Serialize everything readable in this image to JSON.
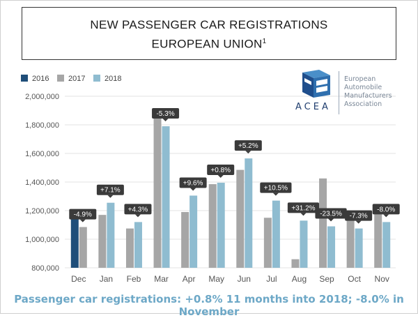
{
  "title": {
    "line1": "NEW PASSENGER CAR REGISTRATIONS",
    "line2": "EUROPEAN UNION",
    "line2_sup": "1"
  },
  "logo": {
    "acronym": "ACEA",
    "name": "European Automobile Manufacturers Association"
  },
  "colors": {
    "2016": "#1f4e79",
    "2017": "#a6a6a6",
    "2018": "#8fbcd0",
    "label_bg": "#3a3a3a",
    "footer": "#6da8c7"
  },
  "footer": "Passenger car registrations: +0.8% 11 months into 2018; -8.0% in November",
  "chart_data": {
    "type": "bar",
    "categories": [
      "Dec",
      "Jan",
      "Feb",
      "Mar",
      "Apr",
      "May",
      "Jun",
      "Jul",
      "Aug",
      "Sep",
      "Oct",
      "Nov"
    ],
    "series": [
      {
        "name": "2016",
        "values": [
          1140000,
          null,
          null,
          null,
          null,
          null,
          null,
          null,
          null,
          null,
          null,
          null
        ]
      },
      {
        "name": "2017",
        "values": [
          1085000,
          1170000,
          1075000,
          1885000,
          1190000,
          1385000,
          1485000,
          1150000,
          860000,
          1425000,
          1155000,
          1215000
        ]
      },
      {
        "name": "2018",
        "values": [
          null,
          1255000,
          1120000,
          1790000,
          1305000,
          1395000,
          1565000,
          1270000,
          1130000,
          1090000,
          1075000,
          1120000
        ]
      }
    ],
    "change_labels": [
      "-4.9%",
      "+7.1%",
      "+4.3%",
      "-5.3%",
      "+9.6%",
      "+0.8%",
      "+5.2%",
      "+10.5%",
      "+31.2%",
      "-23.5%",
      "-7.3%",
      "-8.0%"
    ],
    "y_ticks": [
      "800,000",
      "1,000,000",
      "1,200,000",
      "1,400,000",
      "1,600,000",
      "1,800,000",
      "2,000,000"
    ],
    "y_tick_values": [
      800000,
      1000000,
      1200000,
      1400000,
      1600000,
      1800000,
      2000000
    ],
    "ylim": [
      800000,
      2000000
    ],
    "legend": [
      "2016",
      "2017",
      "2018"
    ],
    "legend_position": "top-left",
    "grid": true,
    "title": "New passenger car registrations European Union",
    "xlabel": "",
    "ylabel": ""
  }
}
